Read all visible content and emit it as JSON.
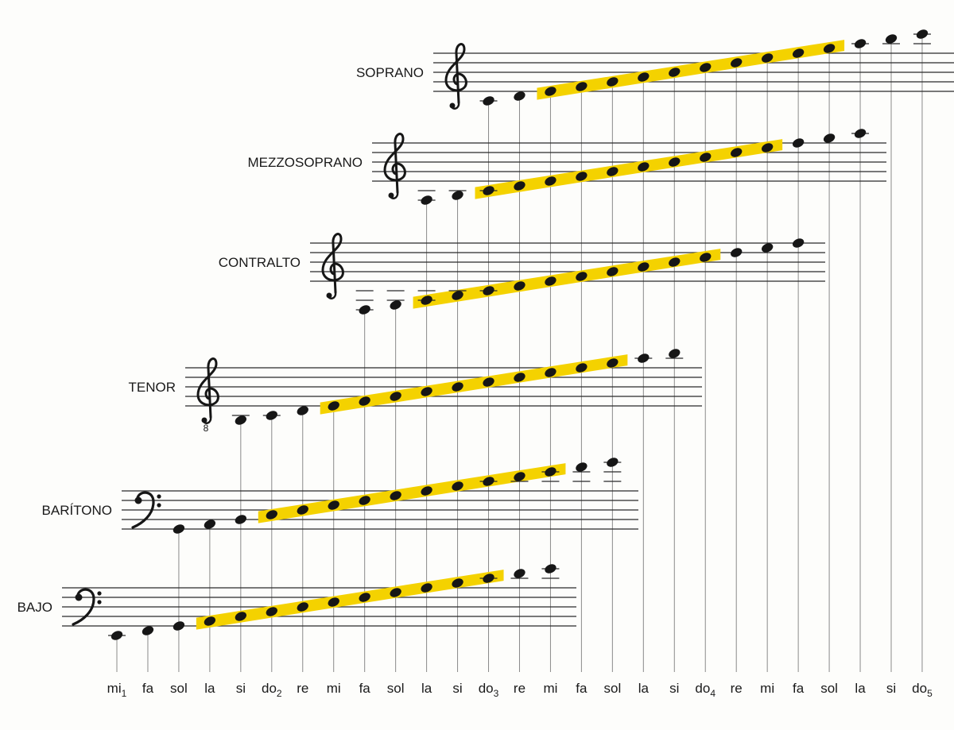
{
  "notes": [
    {
      "name": "mi",
      "sub": "1"
    },
    {
      "name": "fa",
      "sub": ""
    },
    {
      "name": "sol",
      "sub": ""
    },
    {
      "name": "la",
      "sub": ""
    },
    {
      "name": "si",
      "sub": ""
    },
    {
      "name": "do",
      "sub": "2"
    },
    {
      "name": "re",
      "sub": ""
    },
    {
      "name": "mi",
      "sub": ""
    },
    {
      "name": "fa",
      "sub": ""
    },
    {
      "name": "sol",
      "sub": ""
    },
    {
      "name": "la",
      "sub": ""
    },
    {
      "name": "si",
      "sub": ""
    },
    {
      "name": "do",
      "sub": "3"
    },
    {
      "name": "re",
      "sub": ""
    },
    {
      "name": "mi",
      "sub": ""
    },
    {
      "name": "fa",
      "sub": ""
    },
    {
      "name": "sol",
      "sub": ""
    },
    {
      "name": "la",
      "sub": ""
    },
    {
      "name": "si",
      "sub": ""
    },
    {
      "name": "do",
      "sub": "4"
    },
    {
      "name": "re",
      "sub": ""
    },
    {
      "name": "mi",
      "sub": ""
    },
    {
      "name": "fa",
      "sub": ""
    },
    {
      "name": "sol",
      "sub": ""
    },
    {
      "name": "la",
      "sub": ""
    },
    {
      "name": "si",
      "sub": ""
    },
    {
      "name": "do",
      "sub": "5"
    }
  ],
  "voices": [
    {
      "name": "SOPRANO",
      "clef": "treble",
      "range": [
        12,
        26
      ],
      "highlight": [
        14,
        23
      ]
    },
    {
      "name": "MEZZOSOPRANO",
      "clef": "treble",
      "range": [
        10,
        24
      ],
      "highlight": [
        12,
        21
      ]
    },
    {
      "name": "CONTRALTO",
      "clef": "treble",
      "range": [
        8,
        22
      ],
      "highlight": [
        10,
        19
      ]
    },
    {
      "name": "TENOR",
      "clef": "treble-8",
      "clef_mark": "8",
      "range": [
        4,
        18
      ],
      "highlight": [
        7,
        16
      ]
    },
    {
      "name": "BARÍTONO",
      "clef": "bass",
      "range": [
        2,
        16
      ],
      "highlight": [
        5,
        14
      ]
    },
    {
      "name": "BAJO",
      "clef": "bass",
      "range": [
        0,
        14
      ],
      "highlight": [
        3,
        12
      ]
    }
  ],
  "colors": {
    "highlight": "#f4d200",
    "note": "#161616",
    "staff": "#2a2a2a",
    "guide": "#8a8a8a"
  }
}
